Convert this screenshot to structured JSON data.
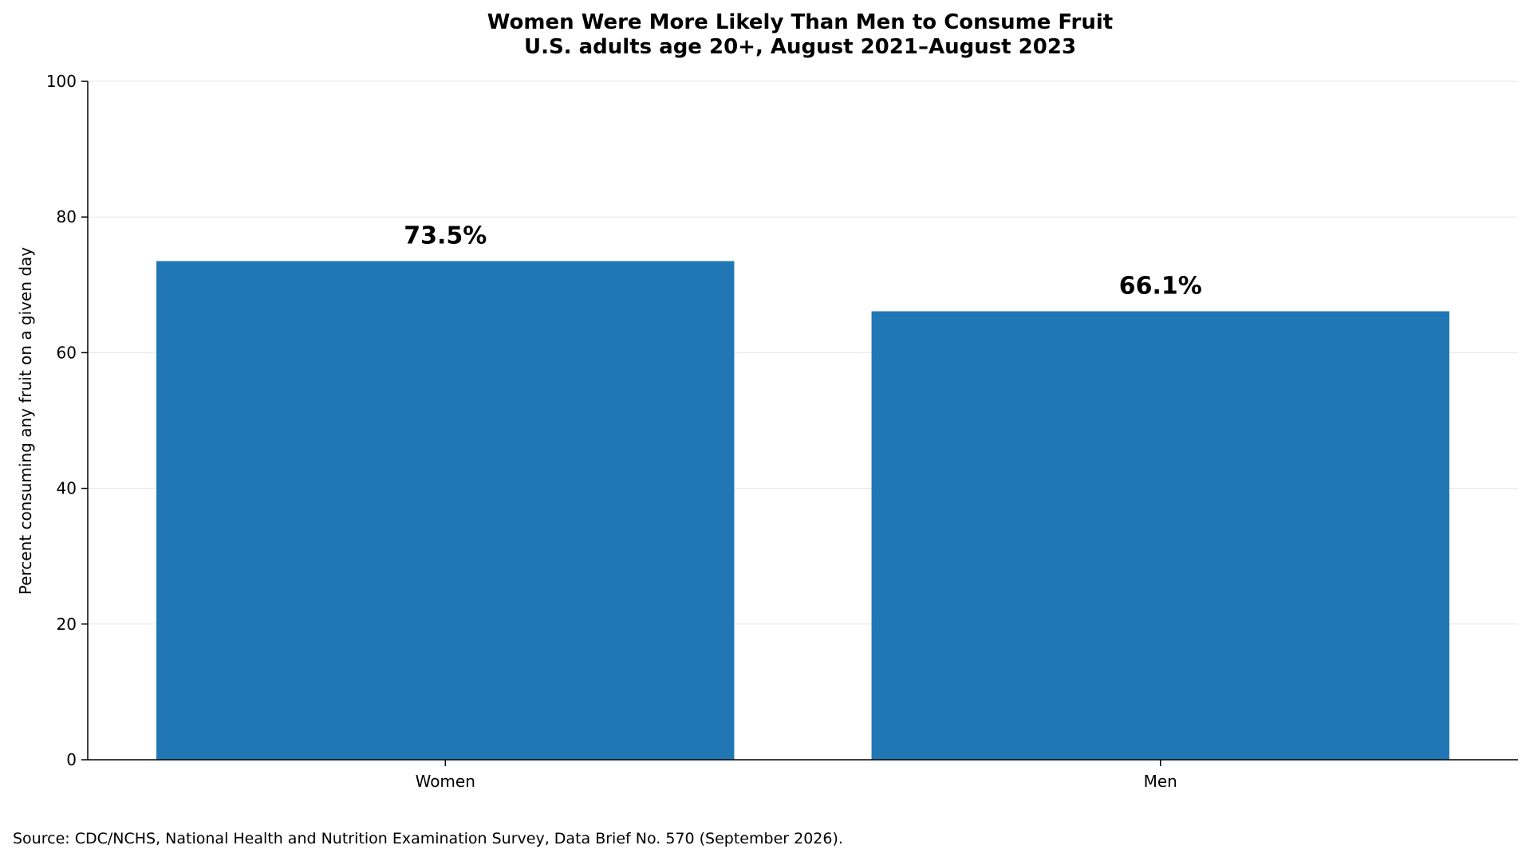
{
  "chart_data": {
    "type": "bar",
    "title": "Women Were More Likely Than Men to Consume Fruit",
    "subtitle": "U.S. adults age 20+, August 2021–August 2023",
    "xlabel": "",
    "ylabel": "Percent consuming any fruit on a given day",
    "categories": [
      "Women",
      "Men"
    ],
    "values": [
      73.5,
      66.1
    ],
    "data_labels": [
      "73.5%",
      "66.1%"
    ],
    "ylim": [
      0,
      100
    ],
    "yticks": [
      0,
      20,
      40,
      60,
      80,
      100
    ],
    "grid": "horizontal",
    "legend": "none",
    "bar_color": "#2077b4",
    "source": "Source: CDC/NCHS, National Health and Nutrition Examination Survey, Data Brief No. 570 (September 2026)."
  }
}
